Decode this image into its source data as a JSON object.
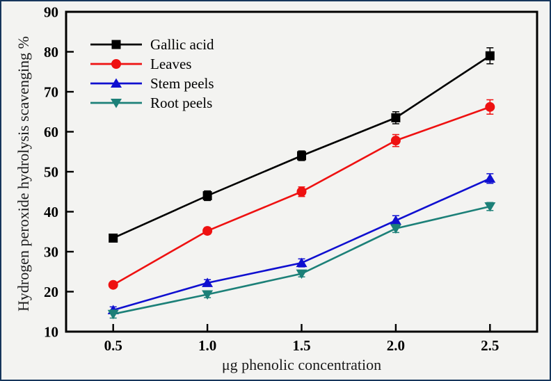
{
  "figure": {
    "background_color": "#f3f3f1",
    "border_color": "#16365c",
    "axis_color": "#000000"
  },
  "chart_data": {
    "type": "line",
    "title": "",
    "xlabel": "μg phenolic concentration",
    "ylabel": "Hydrogen peroxide hydrolysis scavenging %",
    "x": [
      0.5,
      1.0,
      1.5,
      2.0,
      2.5
    ],
    "x_tick_labels": [
      "0.5",
      "1.0",
      "1.5",
      "2.0",
      "2.5"
    ],
    "y_ticks": [
      10,
      20,
      30,
      40,
      50,
      60,
      70,
      80,
      90
    ],
    "xlim": [
      0.25,
      2.75
    ],
    "ylim": [
      10,
      90
    ],
    "grid": false,
    "error_bars": true,
    "legend_position": "upper-left",
    "series": [
      {
        "name": "Gallic acid",
        "color": "#000000",
        "marker": "square",
        "values": [
          33.4,
          44.0,
          54.0,
          63.5,
          79.0
        ],
        "errors": [
          0.8,
          1.2,
          1.2,
          1.5,
          2.0
        ]
      },
      {
        "name": "Leaves",
        "color": "#ee1111",
        "marker": "circle",
        "values": [
          21.7,
          35.2,
          45.0,
          57.8,
          66.2
        ],
        "errors": [
          0.6,
          0.8,
          1.2,
          1.5,
          1.8
        ]
      },
      {
        "name": "Stem peels",
        "color": "#0f0fd0",
        "marker": "triangle-up",
        "values": [
          15.4,
          22.2,
          27.2,
          37.8,
          48.3
        ],
        "errors": [
          0.8,
          0.8,
          1.0,
          1.2,
          1.2
        ]
      },
      {
        "name": "Root peels",
        "color": "#1c8078",
        "marker": "triangle-down",
        "values": [
          14.4,
          19.3,
          24.5,
          35.8,
          41.3
        ],
        "errors": [
          1.0,
          0.8,
          0.8,
          1.0,
          1.0
        ]
      }
    ]
  }
}
